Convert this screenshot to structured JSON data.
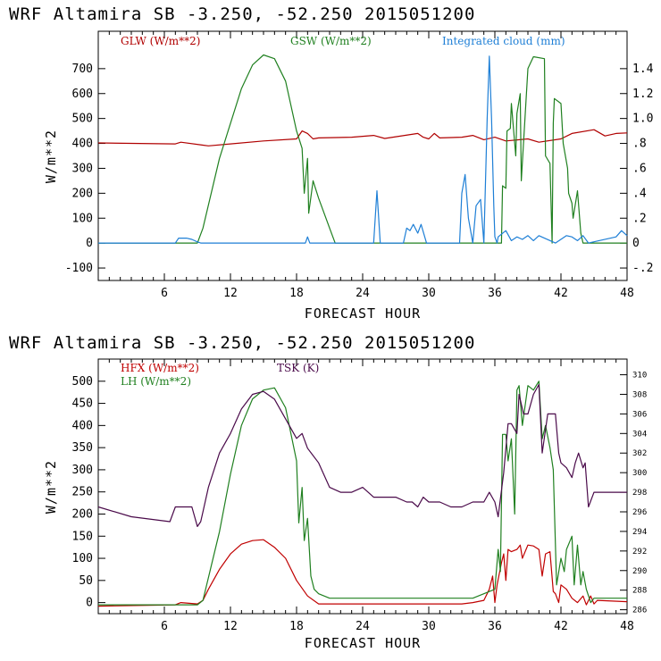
{
  "chart_data": [
    {
      "type": "line",
      "title": "WRF   Altamira  SB  -3.250, -52.250  2015051200",
      "xlabel": "FORECAST HOUR",
      "ylabel": "W/m**2",
      "xlim": [
        0,
        48
      ],
      "ylim": [
        -150,
        850
      ],
      "y2lim": [
        -0.3,
        1.7
      ],
      "xticks": [
        6,
        12,
        18,
        24,
        30,
        36,
        42,
        48
      ],
      "yticks": [
        -100,
        0,
        100,
        200,
        300,
        400,
        500,
        600,
        700
      ],
      "y2ticks": [
        -0.2,
        0,
        0.2,
        0.4,
        0.6,
        0.8,
        1.0,
        1.2,
        1.4
      ],
      "y2ticklabels": [
        "-.2",
        "0",
        ".2",
        ".4",
        ".6",
        ".8",
        "1.0",
        "1.2",
        "1.4"
      ],
      "series": [
        {
          "name": "GLW (W/m**2)",
          "color": "#b00000",
          "axis": "left",
          "x": [
            0,
            7,
            7.5,
            9.5,
            10,
            12,
            15,
            18,
            18.5,
            19,
            19.5,
            20,
            23,
            25,
            26,
            29,
            29.5,
            30,
            30.5,
            31,
            33,
            34,
            35,
            36,
            37,
            39,
            40,
            42,
            43,
            45,
            46,
            47,
            48
          ],
          "y": [
            402,
            398,
            405,
            393,
            390,
            398,
            410,
            418,
            450,
            440,
            418,
            422,
            425,
            432,
            420,
            440,
            425,
            418,
            440,
            422,
            425,
            432,
            415,
            425,
            410,
            418,
            405,
            418,
            440,
            455,
            430,
            440,
            442
          ]
        },
        {
          "name": "GSW (W/m**2)",
          "color": "#208020",
          "axis": "left",
          "x": [
            0,
            9,
            9.5,
            11,
            12,
            13,
            14,
            15,
            16,
            17,
            18,
            18.5,
            18.7,
            19,
            19.1,
            19.5,
            20,
            21,
            21.5,
            36.6,
            36.7,
            37,
            37.1,
            37.4,
            37.5,
            37.9,
            38,
            38.3,
            38.4,
            39,
            39.5,
            40.5,
            40.6,
            41,
            41.2,
            41.3,
            41.4,
            42,
            42.2,
            42.6,
            42.7,
            43,
            43.1,
            43.5,
            43.8,
            44,
            48
          ],
          "y": [
            0,
            0,
            60,
            340,
            480,
            620,
            715,
            755,
            740,
            650,
            450,
            380,
            200,
            340,
            120,
            250,
            180,
            60,
            0,
            0,
            230,
            220,
            450,
            460,
            560,
            350,
            520,
            600,
            250,
            700,
            748,
            740,
            350,
            320,
            0,
            480,
            580,
            560,
            400,
            300,
            200,
            160,
            100,
            210,
            40,
            0,
            0
          ]
        },
        {
          "name": "Integrated cloud (mm)",
          "color": "#1e7fd6",
          "axis": "right",
          "x": [
            0,
            7,
            7.3,
            8,
            8.5,
            9,
            9.3,
            18.8,
            19,
            19.2,
            25,
            25.3,
            25.6,
            27.7,
            28,
            28.3,
            28.6,
            29,
            29.3,
            29.8,
            32.8,
            33,
            33.3,
            33.6,
            34,
            34.3,
            34.7,
            35,
            35.3,
            35.5,
            35.7,
            35.9,
            36,
            36.2,
            36.3,
            37,
            37.5,
            38,
            38.5,
            39,
            39.5,
            40,
            41.5,
            42.5,
            43,
            43.5,
            44,
            44.5,
            47,
            47.5,
            48
          ],
          "y": [
            0,
            0,
            0.04,
            0.04,
            0.03,
            0.01,
            0,
            0,
            0.05,
            0,
            0,
            0.42,
            0,
            0,
            0.12,
            0.1,
            0.15,
            0.08,
            0.15,
            0,
            0,
            0.4,
            0.55,
            0.2,
            0,
            0.3,
            0.35,
            0,
            1.0,
            1.5,
            1.0,
            0.3,
            0.05,
            0,
            0.05,
            0.1,
            0.02,
            0.05,
            0.03,
            0.06,
            0.02,
            0.06,
            0,
            0.06,
            0.05,
            0.02,
            0.06,
            0,
            0.05,
            0.1,
            0.06
          ]
        }
      ]
    },
    {
      "type": "line",
      "title": "WRF   Altamira  SB  -3.250, -52.250  2015051200",
      "xlabel": "FORECAST HOUR",
      "ylabel": "W/m**2",
      "xlim": [
        0,
        48
      ],
      "ylim": [
        -25,
        550
      ],
      "y2lim": [
        285.6,
        311.6
      ],
      "xticks": [
        6,
        12,
        18,
        24,
        30,
        36,
        42,
        48
      ],
      "yticks": [
        0,
        50,
        100,
        150,
        200,
        250,
        300,
        350,
        400,
        450,
        500
      ],
      "y2ticks": [
        286,
        288,
        290,
        292,
        294,
        296,
        298,
        300,
        302,
        304,
        306,
        308,
        310
      ],
      "series": [
        {
          "name": "HFX (W/m**2)",
          "color": "#c00000",
          "axis": "left",
          "x": [
            0,
            7,
            7.5,
            9,
            9.5,
            10,
            11,
            12,
            13,
            14,
            15,
            16,
            17,
            18,
            19,
            20,
            33,
            34,
            35,
            35.5,
            35.8,
            36,
            36.2,
            36.6,
            36.8,
            37,
            37.2,
            37.5,
            38,
            38.3,
            38.5,
            39,
            39.5,
            40,
            40.3,
            40.6,
            41,
            41.3,
            41.5,
            41.8,
            42,
            42.5,
            43,
            43.5,
            44,
            44.3,
            44.7,
            45,
            45.3,
            48
          ],
          "y": [
            -8,
            -5,
            0,
            -3,
            5,
            30,
            75,
            110,
            132,
            140,
            142,
            125,
            100,
            50,
            15,
            -3,
            -3,
            0,
            5,
            30,
            60,
            0,
            40,
            90,
            110,
            50,
            120,
            115,
            120,
            130,
            100,
            130,
            128,
            120,
            60,
            110,
            115,
            25,
            20,
            0,
            40,
            30,
            10,
            0,
            15,
            -5,
            15,
            -3,
            5,
            2
          ]
        },
        {
          "name": "LH (W/m**2)",
          "color": "#208020",
          "axis": "left",
          "x": [
            0,
            9,
            9.5,
            11,
            12,
            13,
            14,
            15,
            16,
            17,
            18,
            18.2,
            18.5,
            18.7,
            19,
            19.3,
            19.6,
            20,
            21,
            25,
            30,
            34,
            35,
            36,
            36.3,
            36.5,
            36.7,
            37,
            37.2,
            37.5,
            37.8,
            38,
            38.2,
            38.5,
            39,
            39.5,
            40,
            40.3,
            40.6,
            41,
            41.3,
            41.6,
            42,
            42.3,
            42.5,
            43,
            43.2,
            43.5,
            43.8,
            44,
            44.3,
            44.7,
            45,
            48
          ],
          "y": [
            -5,
            -5,
            5,
            160,
            290,
            400,
            460,
            480,
            485,
            440,
            320,
            180,
            260,
            140,
            190,
            60,
            30,
            20,
            10,
            10,
            10,
            10,
            20,
            30,
            120,
            70,
            380,
            380,
            320,
            370,
            200,
            480,
            490,
            400,
            490,
            480,
            500,
            370,
            400,
            350,
            300,
            40,
            100,
            70,
            120,
            150,
            40,
            130,
            40,
            70,
            30,
            0,
            10,
            10
          ]
        },
        {
          "name": "TSK (K)",
          "color": "#4a0a4a",
          "axis": "right",
          "x": [
            0,
            3,
            6.5,
            7,
            8.5,
            9,
            9.3,
            9.5,
            10,
            11,
            12,
            13,
            14,
            15,
            16,
            17,
            18,
            18.5,
            19,
            20,
            21,
            22,
            23,
            24,
            25,
            26,
            27,
            28,
            28.5,
            29,
            29.5,
            30,
            31,
            32,
            33,
            34,
            35,
            35.5,
            36,
            36.3,
            36.8,
            37.2,
            37.5,
            38,
            38.2,
            38.6,
            39,
            39.5,
            40,
            40.3,
            40.8,
            41.5,
            41.8,
            42,
            42.5,
            43,
            43.3,
            43.6,
            44,
            44.2,
            44.5,
            45,
            46,
            47,
            48
          ],
          "y": [
            296.5,
            295.5,
            295,
            296.5,
            296.5,
            294.5,
            295,
            296,
            298.5,
            302,
            304,
            306.5,
            308,
            308.3,
            307.5,
            305.5,
            303.5,
            304,
            302.5,
            301,
            298.5,
            298,
            298,
            298.5,
            297.5,
            297.5,
            297.5,
            297,
            297,
            296.5,
            297.5,
            297,
            297,
            296.5,
            296.5,
            297,
            297,
            298,
            297,
            295.5,
            300,
            305,
            305,
            304,
            308,
            306,
            306,
            308,
            309,
            302,
            306,
            306,
            302,
            301,
            300.5,
            299.5,
            301,
            302,
            300.5,
            301,
            296.5,
            298,
            298,
            298,
            298
          ]
        }
      ]
    }
  ]
}
